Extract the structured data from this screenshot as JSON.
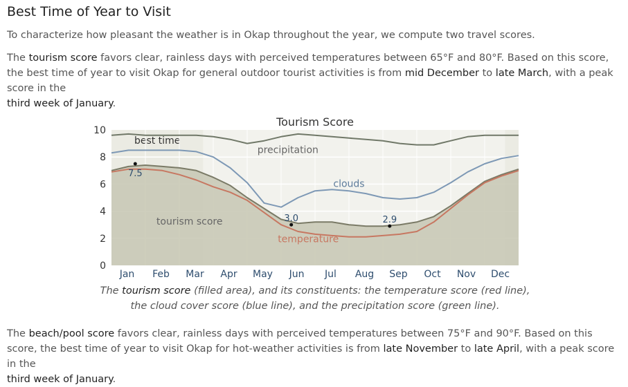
{
  "heading": "Best Time of Year to Visit",
  "intro": "To characterize how pleasant the weather is in Okap throughout the year, we compute two travel scores.",
  "tourism": {
    "lead": "The ",
    "score_name": "tourism score",
    "text1": " favors clear, rainless days with perceived temperatures between 65°F and 80°F. Based on this score, the best time of year to visit Okap for general outdoor tourist activities is from ",
    "start": "mid December",
    "to": " to ",
    "end": "late March",
    "text2": ", with a peak score in the ",
    "peak": "third week of January",
    "tail": "."
  },
  "caption": {
    "lead": "The ",
    "score_name": "tourism score",
    "text": " (filled area), and its constituents: the temperature score (red line), the cloud cover score (blue line), and the precipitation score (green line)."
  },
  "beach": {
    "lead": "The ",
    "score_name": "beach/pool score",
    "text1": " favors clear, rainless days with perceived temperatures between 75°F and 90°F. Based on this score, the best time of year to visit Okap for hot-weather activities is from ",
    "start": "late November",
    "to": " to ",
    "end": "late April",
    "text2": ", with a peak score in the ",
    "peak": "third week of January",
    "tail": "."
  },
  "chart_data": {
    "type": "area",
    "title": "Tourism Score",
    "x_unit": "month",
    "xlim": [
      0,
      12
    ],
    "ylim": [
      0,
      10
    ],
    "yticks": [
      0,
      2,
      4,
      6,
      8,
      10
    ],
    "categories": [
      "Jan",
      "Feb",
      "Mar",
      "Apr",
      "May",
      "Jun",
      "Jul",
      "Aug",
      "Sep",
      "Oct",
      "Nov",
      "Dec"
    ],
    "best_time_label": "best time",
    "best_time_ranges": [
      [
        0,
        2.7
      ],
      [
        11.6,
        12
      ]
    ],
    "colors": {
      "tourism": "#c9c9b6",
      "tourism_line": "#7a7a66",
      "temperature": "#c77761",
      "clouds": "#7d98b5",
      "precipitation": "#707868",
      "best_band": "#ebebe3",
      "plot_bg": "#f2f2ed"
    },
    "series": [
      {
        "name": "tourism score",
        "style": "filled-area",
        "x": [
          0,
          0.5,
          1,
          1.5,
          2,
          2.5,
          3,
          3.5,
          4,
          4.5,
          5,
          5.5,
          6,
          6.5,
          7,
          7.5,
          8,
          8.5,
          9,
          9.5,
          10,
          10.5,
          11,
          11.5,
          12
        ],
        "y": [
          7.0,
          7.3,
          7.4,
          7.3,
          7.2,
          7.0,
          6.5,
          5.9,
          5.0,
          4.2,
          3.4,
          3.1,
          3.2,
          3.2,
          3.0,
          2.9,
          2.9,
          3.0,
          3.2,
          3.6,
          4.4,
          5.3,
          6.2,
          6.7,
          7.1
        ]
      },
      {
        "name": "temperature",
        "style": "line",
        "x": [
          0,
          0.5,
          1,
          1.5,
          2,
          2.5,
          3,
          3.5,
          4,
          4.5,
          5,
          5.5,
          6,
          6.5,
          7,
          7.5,
          8,
          8.5,
          9,
          9.5,
          10,
          10.5,
          11,
          11.5,
          12
        ],
        "y": [
          6.9,
          7.1,
          7.1,
          7.0,
          6.7,
          6.3,
          5.8,
          5.4,
          4.8,
          3.9,
          3.0,
          2.5,
          2.3,
          2.2,
          2.1,
          2.1,
          2.2,
          2.3,
          2.5,
          3.2,
          4.2,
          5.2,
          6.1,
          6.6,
          7.0
        ]
      },
      {
        "name": "clouds",
        "style": "line",
        "x": [
          0,
          0.5,
          1,
          1.5,
          2,
          2.5,
          3,
          3.5,
          4,
          4.5,
          5,
          5.5,
          6,
          6.5,
          7,
          7.5,
          8,
          8.5,
          9,
          9.5,
          10,
          10.5,
          11,
          11.5,
          12
        ],
        "y": [
          8.3,
          8.5,
          8.5,
          8.5,
          8.5,
          8.4,
          8.0,
          7.2,
          6.1,
          4.6,
          4.3,
          5.0,
          5.5,
          5.6,
          5.5,
          5.3,
          5.0,
          4.9,
          5.0,
          5.4,
          6.1,
          6.9,
          7.5,
          7.9,
          8.1
        ]
      },
      {
        "name": "precipitation",
        "style": "line",
        "x": [
          0,
          0.5,
          1,
          1.5,
          2,
          2.5,
          3,
          3.5,
          4,
          4.5,
          5,
          5.5,
          6,
          6.5,
          7,
          7.5,
          8,
          8.5,
          9,
          9.5,
          10,
          10.5,
          11,
          11.5,
          12
        ],
        "y": [
          9.6,
          9.7,
          9.6,
          9.6,
          9.6,
          9.6,
          9.5,
          9.3,
          9.0,
          9.2,
          9.5,
          9.7,
          9.6,
          9.5,
          9.4,
          9.3,
          9.2,
          9.0,
          8.9,
          8.9,
          9.2,
          9.5,
          9.6,
          9.6,
          9.6
        ]
      }
    ],
    "annotations": [
      {
        "label": "7.5",
        "x": 0.7,
        "y": 7.5
      },
      {
        "label": "3.0",
        "x": 5.3,
        "y": 3.0
      },
      {
        "label": "2.9",
        "x": 8.2,
        "y": 2.9
      }
    ],
    "series_labels": [
      {
        "name": "precipitation",
        "x": 5.2,
        "y": 8.3
      },
      {
        "name": "clouds",
        "x": 7.0,
        "y": 5.8
      },
      {
        "name": "tourism score",
        "x": 2.3,
        "y": 3.0
      },
      {
        "name": "temperature",
        "x": 5.8,
        "y": 1.7
      }
    ]
  }
}
